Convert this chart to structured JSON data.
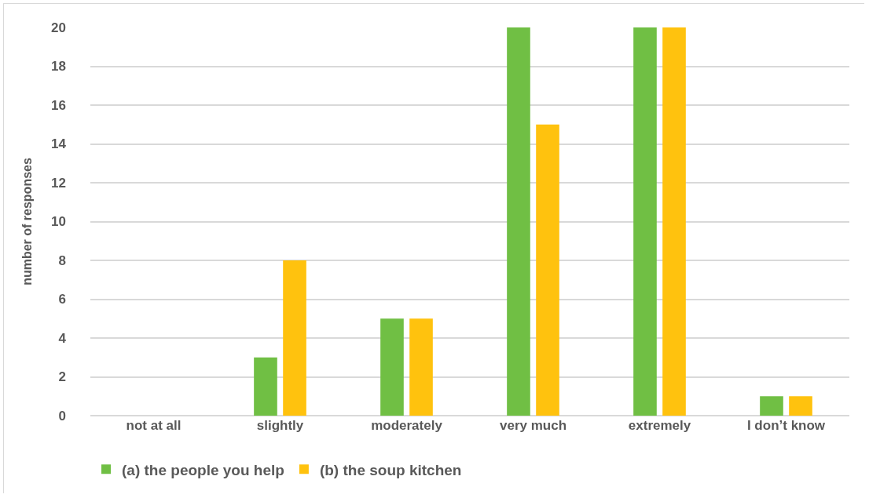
{
  "chart_data": {
    "type": "bar",
    "ylabel": "number of responses",
    "categories": [
      "not at all",
      "slightly",
      "moderately",
      "very much",
      "extremely",
      "I don’t know"
    ],
    "series": [
      {
        "name": "(a) the people you help",
        "color": "#70bf44",
        "values": [
          0,
          3,
          5,
          20,
          20,
          1
        ]
      },
      {
        "name": "(b) the soup kitchen",
        "color": "#ffc20e",
        "values": [
          0,
          8,
          5,
          15,
          20,
          1
        ]
      }
    ],
    "ylim": [
      0,
      20
    ],
    "yticks": [
      0,
      2,
      4,
      6,
      8,
      10,
      12,
      14,
      16,
      18,
      20
    ],
    "grid": "y",
    "legend": "bottom left"
  }
}
